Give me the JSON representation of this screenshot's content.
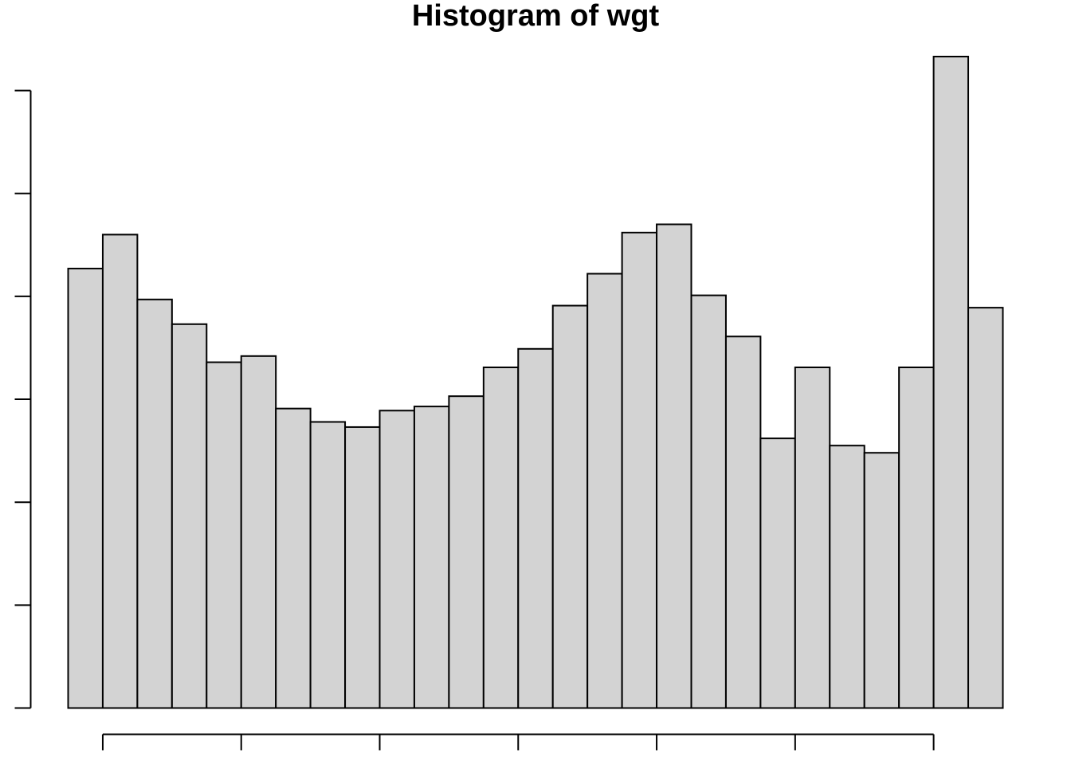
{
  "chart_data": {
    "type": "bar",
    "title": "Histogram of wgt",
    "xlabel": "",
    "ylabel": "",
    "bar_fill": "#d3d3d3",
    "bar_stroke": "#000000",
    "values": [
      4.27,
      4.6,
      3.97,
      3.73,
      3.36,
      3.42,
      2.91,
      2.78,
      2.73,
      2.89,
      2.93,
      3.03,
      3.31,
      3.49,
      3.91,
      4.22,
      4.62,
      4.7,
      4.01,
      3.61,
      2.62,
      3.31,
      2.55,
      2.48,
      3.31,
      6.33,
      3.89
    ],
    "ylim": [
      0,
      6.33
    ],
    "y_ticks": [
      0,
      1,
      2,
      3,
      4,
      5,
      6
    ],
    "x_tick_bins": [
      1,
      5,
      9,
      13,
      17,
      21,
      25
    ],
    "grid": false,
    "legend": "none"
  }
}
